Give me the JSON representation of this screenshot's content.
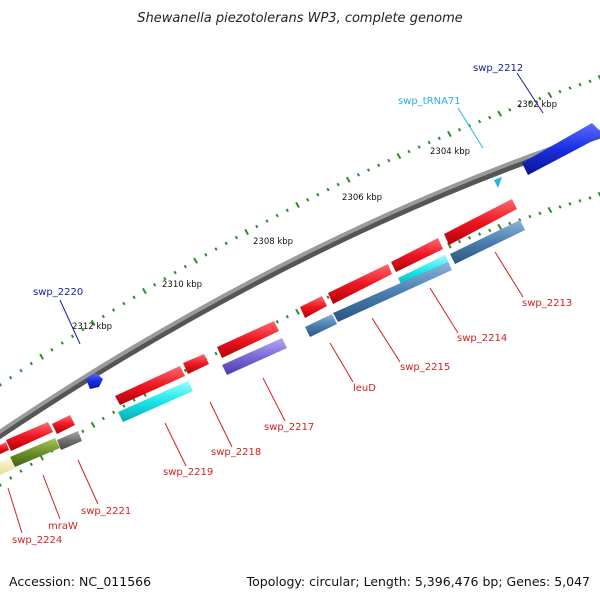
{
  "title": "Shewanella piezotolerans WP3, complete genome",
  "footer": {
    "accession": "Accession: NC_011566",
    "summary": "Topology: circular; Length: 5,396,476 bp; Genes: 5,047"
  },
  "scale_labels": [
    "2302 kbp",
    "2304 kbp",
    "2306 kbp",
    "2308 kbp",
    "2310 kbp",
    "2312 kbp"
  ],
  "gene_labels": [
    {
      "text": "swp_2212",
      "color": "#1a1aa6"
    },
    {
      "text": "swp_tRNA71",
      "color": "#27b4e0"
    },
    {
      "text": "swp_2213",
      "color": "#d62020"
    },
    {
      "text": "swp_2214",
      "color": "#d62020"
    },
    {
      "text": "swp_2215",
      "color": "#d62020"
    },
    {
      "text": "leuD",
      "color": "#d62020"
    },
    {
      "text": "swp_2217",
      "color": "#d62020"
    },
    {
      "text": "swp_2218",
      "color": "#d62020"
    },
    {
      "text": "swp_2219",
      "color": "#d62020"
    },
    {
      "text": "swp_2220",
      "color": "#1a1aa6"
    },
    {
      "text": "swp_2221",
      "color": "#d62020"
    },
    {
      "text": "mraW",
      "color": "#d62020"
    },
    {
      "text": "swp_2224",
      "color": "#d62020"
    }
  ],
  "colors": {
    "backbone": "#8a8a8a",
    "tick_green": "#2e8b2e",
    "red_feature": "#e8141e",
    "blue_feature": "#1a2fd6",
    "steel_feature": "#4a7fb0",
    "cyan_feature": "#18e6ea",
    "purple_feature": "#7a6ad8",
    "olive_feature": "#6b8f2a",
    "gray_feature": "#707070",
    "yellow_feature": "#f0eab0"
  }
}
